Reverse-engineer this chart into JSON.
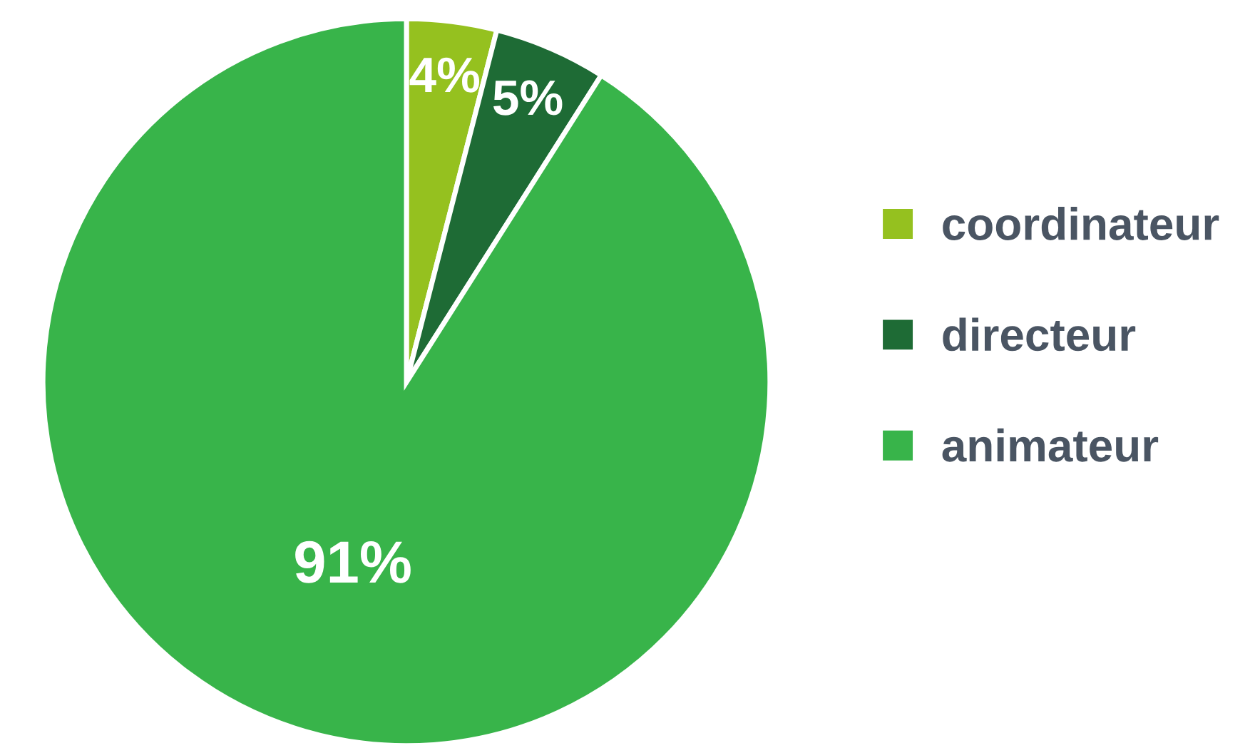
{
  "chart_data": {
    "type": "pie",
    "categories": [
      "coordinateur",
      "directeur",
      "animateur"
    ],
    "values": [
      4,
      5,
      91
    ],
    "value_labels": [
      "4%",
      "5%",
      "91%"
    ],
    "colors": [
      "#95c11f",
      "#1e6b35",
      "#38b44a"
    ],
    "legend": "right"
  }
}
